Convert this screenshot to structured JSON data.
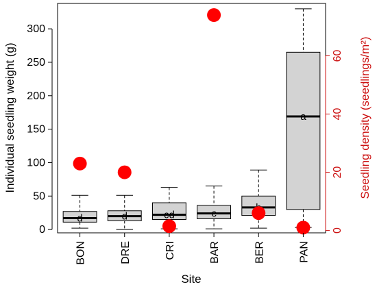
{
  "chart_data": {
    "type": "boxplot",
    "categories": [
      "BON",
      "DRE",
      "CRI",
      "BAR",
      "BER",
      "PAN"
    ],
    "xlabel": "Site",
    "ylabel": "Individual seedling weight (g)",
    "ylabel_right": "Seedling density (seedlings/m²)",
    "ylim": [
      -5,
      338
    ],
    "yticks": [
      0,
      50,
      100,
      150,
      200,
      250,
      300
    ],
    "ylim_right": [
      -0.8,
      78
    ],
    "yticks_right": [
      0,
      20,
      40,
      60
    ],
    "grid": false,
    "colors": {
      "box_fill": "#d3d3d3",
      "median": "#000000",
      "density_points": "#ff0000",
      "right_axis": "#cc1111"
    },
    "boxes": [
      {
        "category": "BON",
        "whisker_low": 2,
        "q1": 11,
        "median": 17,
        "q3": 27,
        "whisker_high": 51,
        "letter": "d"
      },
      {
        "category": "DRE",
        "whisker_low": 0,
        "q1": 13,
        "median": 20,
        "q3": 28,
        "whisker_high": 51,
        "letter": "d"
      },
      {
        "category": "CRI",
        "whisker_low": 1,
        "q1": 15,
        "median": 22,
        "q3": 40,
        "whisker_high": 63,
        "letter": "cd"
      },
      {
        "category": "BAR",
        "whisker_low": 1,
        "q1": 16,
        "median": 24,
        "q3": 36,
        "whisker_high": 65,
        "letter": "c"
      },
      {
        "category": "BER",
        "whisker_low": 2,
        "q1": 21,
        "median": 33,
        "q3": 50,
        "whisker_high": 89,
        "letter": "b"
      },
      {
        "category": "PAN",
        "whisker_low": 3,
        "q1": 30,
        "median": 169,
        "q3": 265,
        "whisker_high": 330,
        "letter": "a"
      }
    ],
    "density": {
      "values": [
        23,
        20,
        1.5,
        74,
        6,
        1
      ]
    }
  }
}
